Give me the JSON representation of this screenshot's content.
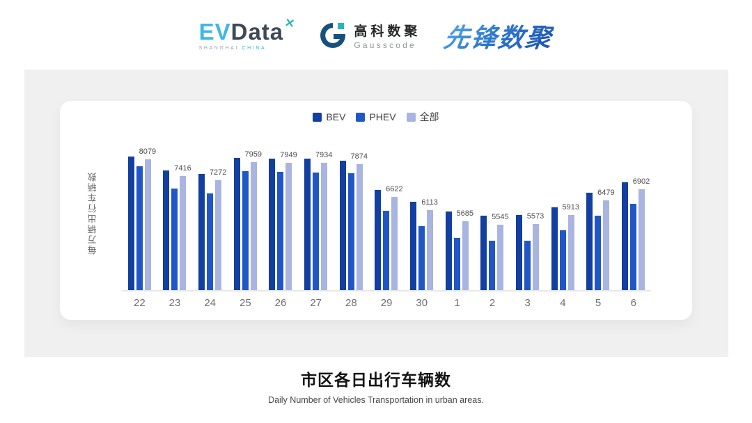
{
  "header": {
    "evdata": {
      "ev": "EV",
      "data": "Data",
      "mark": "✕",
      "sub_left": "SHANGHAI",
      "sub_right": "CHINA"
    },
    "gausscode": {
      "cn": "高科数聚",
      "en": "Gausscode"
    },
    "xianfeng": {
      "text": "先锋数聚"
    }
  },
  "chart_data": {
    "type": "bar",
    "title": "市区各日出行车辆数",
    "subtitle": "Daily Number of Vehicles Transportation in urban areas.",
    "xlabel": "",
    "ylabel": "每万辆出行车辆数",
    "legend_position": "top",
    "grid": false,
    "ylim": [
      3000,
      8400
    ],
    "categories": [
      "22",
      "23",
      "24",
      "25",
      "26",
      "27",
      "28",
      "29",
      "30",
      "1",
      "2",
      "3",
      "4",
      "5",
      "6"
    ],
    "series": [
      {
        "name": "BEV",
        "color": "#123fa0",
        "values": [
          8190,
          7650,
          7510,
          8120,
          8100,
          8090,
          8030,
          6900,
          6430,
          6050,
          5890,
          5910,
          6200,
          6770,
          7190
        ]
      },
      {
        "name": "PHEV",
        "color": "#2156c8",
        "values": [
          7800,
          6950,
          6740,
          7610,
          7590,
          7570,
          7530,
          6070,
          5490,
          5030,
          4910,
          4920,
          5320,
          5890,
          6340
        ]
      },
      {
        "name": "全部",
        "color": "#a9b4e1",
        "labels_visible": true,
        "values": [
          8079,
          7416,
          7272,
          7959,
          7949,
          7934,
          7874,
          6622,
          6113,
          5685,
          5545,
          5573,
          5913,
          6479,
          6902
        ]
      }
    ]
  }
}
